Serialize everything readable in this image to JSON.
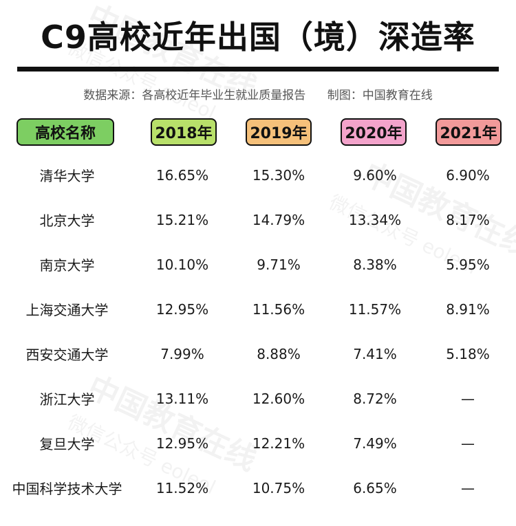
{
  "title": "C9高校近年出国（境）深造率",
  "source": {
    "data_source": "数据来源：各高校近年毕业生就业质量报告",
    "chart_by": "制图：中国教育在线"
  },
  "headers": [
    {
      "label": "高校名称",
      "color": "#7dce62"
    },
    {
      "label": "2018年",
      "color": "#b8e06a"
    },
    {
      "label": "2019年",
      "color": "#f5c07a"
    },
    {
      "label": "2020年",
      "color": "#f3a3cb"
    },
    {
      "label": "2021年",
      "color": "#f29a9a"
    }
  ],
  "rows": [
    {
      "name": "清华大学",
      "y2018": "16.65%",
      "y2019": "15.30%",
      "y2020": "9.60%",
      "y2021": "6.90%"
    },
    {
      "name": "北京大学",
      "y2018": "15.21%",
      "y2019": "14.79%",
      "y2020": "13.34%",
      "y2021": "8.17%"
    },
    {
      "name": "南京大学",
      "y2018": "10.10%",
      "y2019": "9.71%",
      "y2020": "8.38%",
      "y2021": "5.95%"
    },
    {
      "name": "上海交通大学",
      "y2018": "12.95%",
      "y2019": "11.56%",
      "y2020": "11.57%",
      "y2021": "8.91%"
    },
    {
      "name": "西安交通大学",
      "y2018": "7.99%",
      "y2019": "8.88%",
      "y2020": "7.41%",
      "y2021": "5.18%"
    },
    {
      "name": "浙江大学",
      "y2018": "13.11%",
      "y2019": "12.60%",
      "y2020": "8.72%",
      "y2021": "—"
    },
    {
      "name": "复旦大学",
      "y2018": "12.95%",
      "y2019": "12.21%",
      "y2020": "7.49%",
      "y2021": "—"
    },
    {
      "name": "中国科学技术大学",
      "y2018": "11.52%",
      "y2019": "10.75%",
      "y2020": "6.65%",
      "y2021": "—"
    }
  ],
  "watermark": {
    "text": "中国教育在线",
    "sub": "微信公众号 eoleol"
  }
}
